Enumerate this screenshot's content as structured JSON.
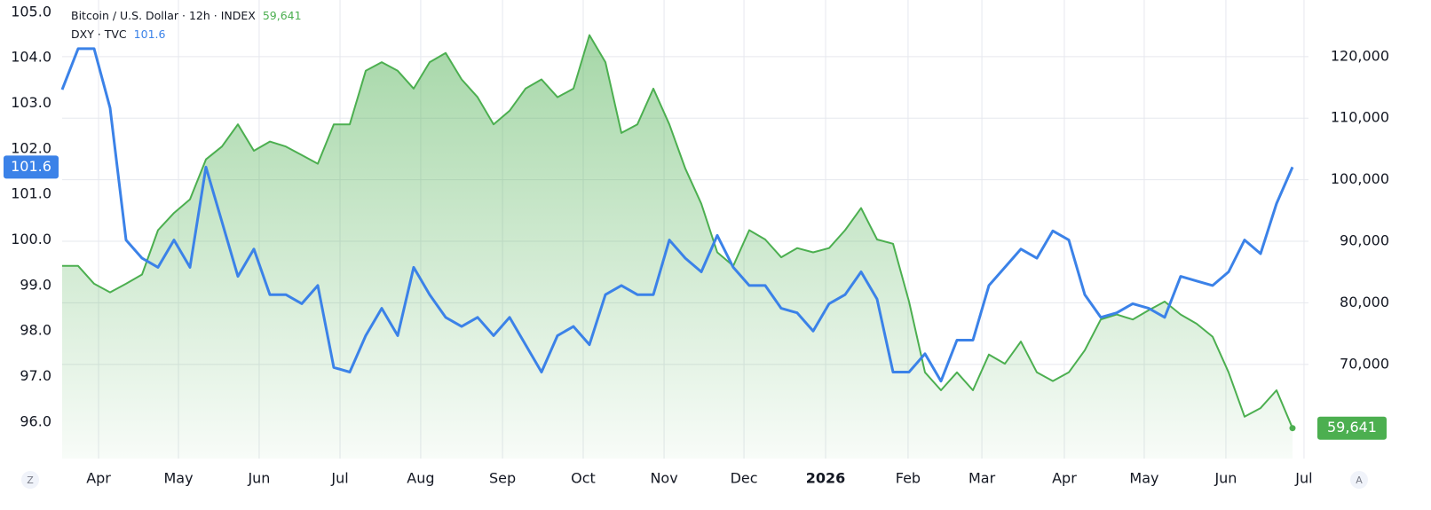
{
  "chart_data": {
    "type": "line",
    "legend": [
      {
        "text": "Bitcoin / U.S. Dollar · 12h · INDEX",
        "series": 0
      },
      {
        "text": "DXY · TVC",
        "series": 1
      }
    ],
    "controls": [
      "Z",
      "A"
    ],
    "xlim": [
      0,
      78
    ],
    "xticks": [
      {
        "value": 2.28,
        "label": "Apr"
      },
      {
        "value": 7.28,
        "label": "May"
      },
      {
        "value": 12.33,
        "label": "Jun"
      },
      {
        "value": 17.39,
        "label": "Jul"
      },
      {
        "value": 22.44,
        "label": "Aug"
      },
      {
        "value": 27.56,
        "label": "Sep"
      },
      {
        "value": 32.61,
        "label": "Oct"
      },
      {
        "value": 37.67,
        "label": "Nov"
      },
      {
        "value": 42.67,
        "label": "Dec"
      },
      {
        "value": 47.78,
        "label": "2026"
      },
      {
        "value": 52.94,
        "label": "Feb"
      },
      {
        "value": 57.56,
        "label": "Mar"
      },
      {
        "value": 62.72,
        "label": "Apr"
      },
      {
        "value": 67.72,
        "label": "May"
      },
      {
        "value": 72.83,
        "label": "Jun"
      },
      {
        "value": 77.72,
        "label": "Jul"
      }
    ],
    "ylim": [
      95.2,
      105.27
    ],
    "yticks": [
      {
        "value": 96,
        "label": "96.0"
      },
      {
        "value": 97,
        "label": "97.0"
      },
      {
        "value": 98,
        "label": "98.0"
      },
      {
        "value": 99,
        "label": "99.0"
      },
      {
        "value": 100,
        "label": "100.0"
      },
      {
        "value": 101,
        "label": "101.0"
      },
      {
        "value": 102,
        "label": "102.0"
      },
      {
        "value": 103,
        "label": "103.0"
      },
      {
        "value": 104,
        "label": "104.0"
      },
      {
        "value": 105,
        "label": "105.0"
      }
    ],
    "y2lim": [
      54700,
      129200
    ],
    "y2ticks": [
      {
        "value": 70000,
        "label": "70,000"
      },
      {
        "value": 80000,
        "label": "80,000"
      },
      {
        "value": 90000,
        "label": "90,000"
      },
      {
        "value": 100000,
        "label": "100,000"
      },
      {
        "value": 110000,
        "label": "110,000"
      },
      {
        "value": 120000,
        "label": "120,000"
      }
    ],
    "grid": true,
    "series": [
      {
        "name": "Bitcoin / U.S. Dollar",
        "color": "#4caf50",
        "axis": "y2",
        "area": true,
        "last_label": "59,641",
        "values": [
          86000,
          86000,
          83100,
          81700,
          83100,
          84600,
          91800,
          94600,
          96800,
          103300,
          105400,
          109000,
          104700,
          106200,
          105400,
          104000,
          102600,
          109000,
          109000,
          117700,
          119100,
          117700,
          114800,
          119100,
          120600,
          116300,
          113400,
          109000,
          111200,
          114800,
          116300,
          113400,
          114800,
          123500,
          119100,
          107600,
          109000,
          114800,
          109000,
          101800,
          96100,
          88200,
          86000,
          91800,
          90300,
          87400,
          88900,
          88200,
          88900,
          91800,
          95400,
          90300,
          89600,
          80200,
          68700,
          65800,
          68700,
          65800,
          71600,
          70100,
          73700,
          68700,
          67300,
          68700,
          72300,
          77300,
          78100,
          77300,
          78800,
          80200,
          78100,
          76600,
          74500,
          68700,
          61500,
          62900,
          65800,
          59641
        ]
      },
      {
        "name": "DXY",
        "color": "#3b82e8",
        "axis": "y",
        "values": [
          103.3,
          104.2,
          104.2,
          102.9,
          100.0,
          99.6,
          99.4,
          100.0,
          99.4,
          101.6,
          100.4,
          99.2,
          99.8,
          98.8,
          98.8,
          98.6,
          99.0,
          97.2,
          97.1,
          97.9,
          98.5,
          97.9,
          99.4,
          98.8,
          98.3,
          98.1,
          98.3,
          97.9,
          98.3,
          97.7,
          97.1,
          97.9,
          98.1,
          97.7,
          98.8,
          99.0,
          98.8,
          98.8,
          100.0,
          99.6,
          99.3,
          100.1,
          99.4,
          99.0,
          99.0,
          98.5,
          98.4,
          98.0,
          98.6,
          98.8,
          99.3,
          98.7,
          97.1,
          97.1,
          97.5,
          96.9,
          97.8,
          97.8,
          99.0,
          99.4,
          99.8,
          99.6,
          100.2,
          100.0,
          98.8,
          98.3,
          98.4,
          98.6,
          98.5,
          98.3,
          99.2,
          99.1,
          99.0,
          99.3,
          100.0,
          99.7,
          100.8,
          101.6
        ]
      }
    ]
  }
}
